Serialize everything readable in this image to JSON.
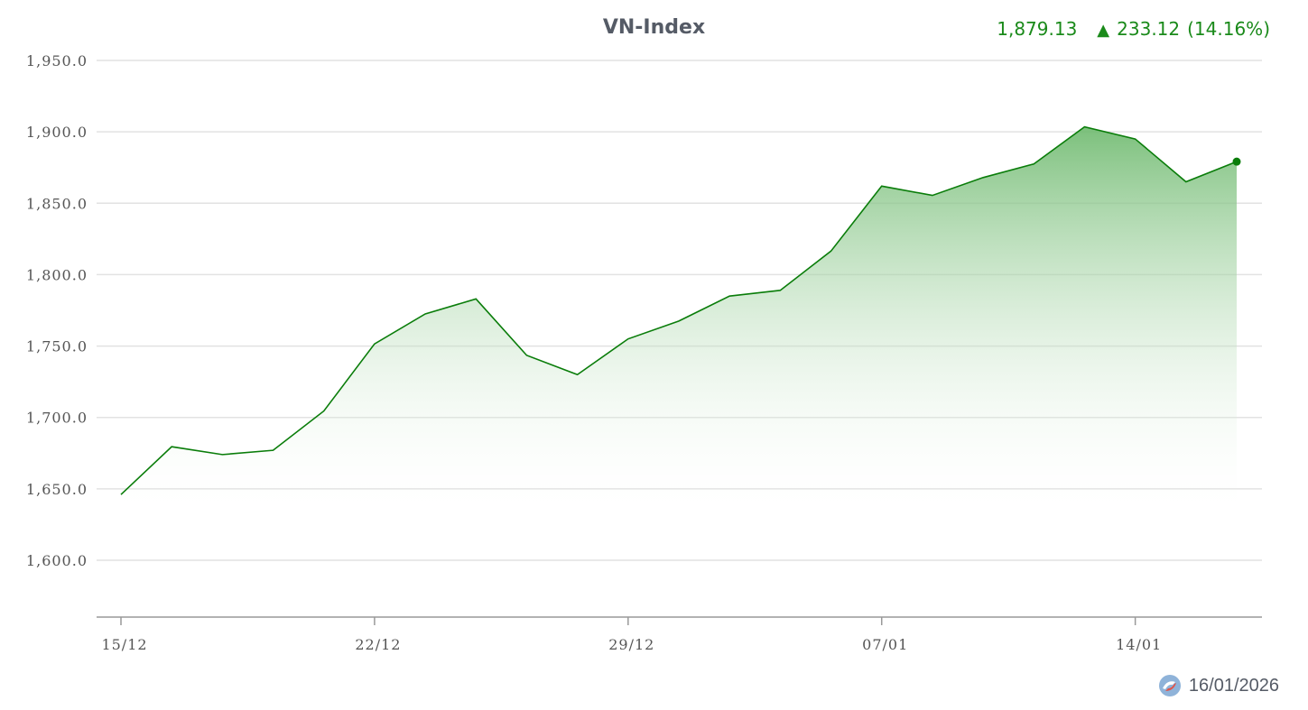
{
  "header": {
    "title": "VN-Index",
    "last_value": "1,879.13",
    "change_icon": "up-triangle-icon",
    "change_symbol": "▲",
    "change_value": "233.12",
    "change_percent": "(14.16%)",
    "change_color": "#1a8a1a"
  },
  "footer": {
    "date": "16/01/2026",
    "logo_icon": "brand-logo-icon"
  },
  "colors": {
    "line": "#0a7d0a",
    "area_top": "#6db96d",
    "grid": "#e2e2e2",
    "axis": "#999999"
  },
  "chart_data": {
    "type": "area",
    "title": "VN-Index",
    "xlabel": "",
    "ylabel": "",
    "ylim": [
      1560,
      1960
    ],
    "yticks": [
      1600,
      1650,
      1700,
      1750,
      1800,
      1850,
      1900,
      1950
    ],
    "ytick_labels": [
      "1,600.0",
      "1,650.0",
      "1,700.0",
      "1,750.0",
      "1,800.0",
      "1,850.0",
      "1,900.0",
      "1,950.0"
    ],
    "xticks": [
      "15/12",
      "22/12",
      "29/12",
      "07/01",
      "14/01"
    ],
    "xtick_index": [
      0,
      5,
      10,
      15,
      20
    ],
    "grid": true,
    "legend": "none",
    "last_point_marker": true,
    "series": [
      {
        "values": [
          1646.0,
          1679.5,
          1674.0,
          1677.0,
          1704.5,
          1751.5,
          1772.5,
          1783.0,
          1743.5,
          1730.0,
          1755.0,
          1767.5,
          1785.0,
          1789.0,
          1816.5,
          1862.0,
          1855.5,
          1868.0,
          1877.5,
          1903.5,
          1895.0,
          1865.0,
          1879.13
        ]
      }
    ]
  }
}
